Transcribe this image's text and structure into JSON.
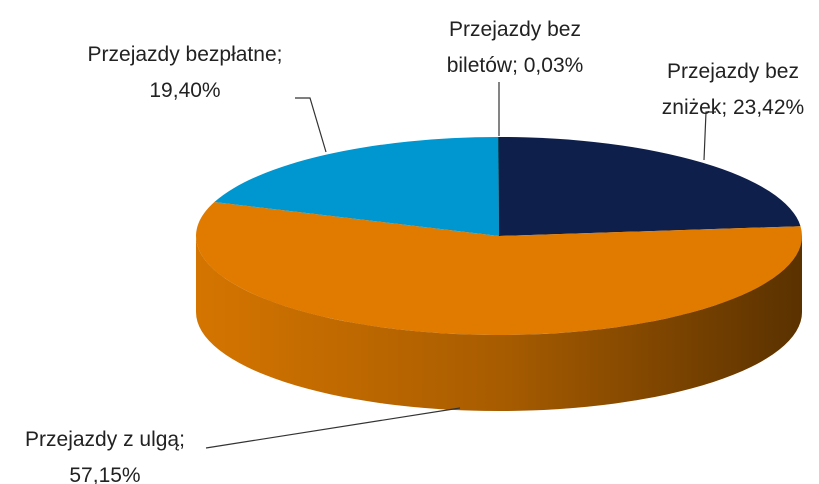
{
  "chart_data": {
    "type": "pie",
    "style": "3d",
    "categories": [
      "Przejazdy bez zniżek",
      "Przejazdy z ulgą",
      "Przejazdy bezpłatne",
      "Przejazdy bez biletów"
    ],
    "values": [
      23.42,
      57.15,
      19.4,
      0.03
    ],
    "value_labels": [
      "23,42%",
      "57,15%",
      "19,40%",
      "0,03%"
    ],
    "label_separator": "; ",
    "colors": [
      "#0f1f4b",
      "#e07b00",
      "#0096d0",
      "#000000"
    ]
  }
}
